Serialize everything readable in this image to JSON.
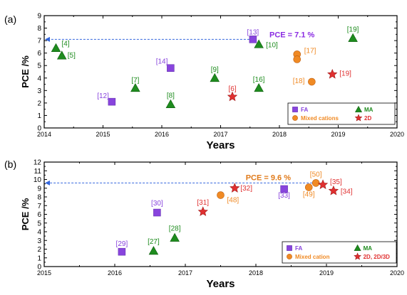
{
  "chart_data": [
    {
      "type": "scatter",
      "panel_label": "(a)",
      "xlabel": "Years",
      "ylabel": "PCE /%",
      "xlim": [
        2014,
        2020
      ],
      "ylim": [
        0,
        9
      ],
      "x_ticks": [
        "2014",
        "2015",
        "2016",
        "2017",
        "2018",
        "2019",
        "2020"
      ],
      "y_ticks": [
        "0",
        "1",
        "2",
        "3",
        "4",
        "5",
        "6",
        "7",
        "8",
        "9"
      ],
      "annotation": {
        "text": "PCE = 7.1 %",
        "value": 7.1
      },
      "series": [
        {
          "name": "FA",
          "marker": "square",
          "color": "#8844dd",
          "points": [
            {
              "x": 2015.15,
              "y": 2.1,
              "label": "[12]"
            },
            {
              "x": 2016.15,
              "y": 4.8,
              "label": "[14]"
            },
            {
              "x": 2017.55,
              "y": 7.1,
              "label": "[13]"
            }
          ]
        },
        {
          "name": "MA",
          "marker": "triangle",
          "color": "#1e8c1e",
          "points": [
            {
              "x": 2014.2,
              "y": 6.4,
              "label": "[4]"
            },
            {
              "x": 2014.3,
              "y": 5.8,
              "label": "[5]"
            },
            {
              "x": 2015.55,
              "y": 3.2,
              "label": "[7]"
            },
            {
              "x": 2016.15,
              "y": 1.9,
              "label": "[8]"
            },
            {
              "x": 2016.9,
              "y": 4.0,
              "label": "[9]"
            },
            {
              "x": 2017.65,
              "y": 6.7,
              "label": "[10]"
            },
            {
              "x": 2017.65,
              "y": 3.2,
              "label": "[16]"
            },
            {
              "x": 2019.25,
              "y": 7.2,
              "label": "[19]"
            }
          ]
        },
        {
          "name": "Mixed cations",
          "marker": "circle",
          "color": "#f08a24",
          "points": [
            {
              "x": 2018.3,
              "y": 5.9,
              "label": "[17]"
            },
            {
              "x": 2018.3,
              "y": 5.5,
              "label": ""
            },
            {
              "x": 2018.55,
              "y": 3.7,
              "label": "[18]"
            }
          ]
        },
        {
          "name": "2D",
          "marker": "star",
          "color": "#e03030",
          "points": [
            {
              "x": 2017.2,
              "y": 2.5,
              "label": "[6]"
            },
            {
              "x": 2018.9,
              "y": 4.3,
              "label": "[19]"
            }
          ]
        }
      ]
    },
    {
      "type": "scatter",
      "panel_label": "(b)",
      "xlabel": "Years",
      "ylabel": "PCE /%",
      "xlim": [
        2015,
        2020
      ],
      "ylim": [
        0,
        12
      ],
      "x_ticks": [
        "2015",
        "2016",
        "2017",
        "2018",
        "2019",
        "2020"
      ],
      "y_ticks": [
        "0",
        "1",
        "2",
        "3",
        "4",
        "5",
        "6",
        "7",
        "8",
        "9",
        "10",
        "11",
        "12"
      ],
      "annotation": {
        "text": "PCE = 9.6 %",
        "value": 9.6
      },
      "series": [
        {
          "name": "FA",
          "marker": "square",
          "color": "#8844dd",
          "points": [
            {
              "x": 2016.1,
              "y": 1.7,
              "label": "[29]"
            },
            {
              "x": 2016.6,
              "y": 6.2,
              "label": "[30]"
            },
            {
              "x": 2018.4,
              "y": 8.9,
              "label": "[33]"
            }
          ]
        },
        {
          "name": "MA",
          "marker": "triangle",
          "color": "#1e8c1e",
          "points": [
            {
              "x": 2016.55,
              "y": 1.8,
              "label": "[27]"
            },
            {
              "x": 2016.85,
              "y": 3.3,
              "label": "[28]"
            }
          ]
        },
        {
          "name": "Mixed cation",
          "marker": "circle",
          "color": "#f08a24",
          "points": [
            {
              "x": 2017.5,
              "y": 8.2,
              "label": "[48]"
            },
            {
              "x": 2018.75,
              "y": 9.1,
              "label": "[49]"
            },
            {
              "x": 2018.85,
              "y": 9.6,
              "label": "[50]"
            }
          ]
        },
        {
          "name": "2D, 2D/3D",
          "marker": "star",
          "color": "#e03030",
          "points": [
            {
              "x": 2017.25,
              "y": 6.3,
              "label": "[31]"
            },
            {
              "x": 2017.7,
              "y": 9.0,
              "label": "[32]"
            },
            {
              "x": 2018.95,
              "y": 9.4,
              "label": "[35]"
            },
            {
              "x": 2019.1,
              "y": 8.7,
              "label": "[34]"
            }
          ]
        }
      ]
    }
  ]
}
